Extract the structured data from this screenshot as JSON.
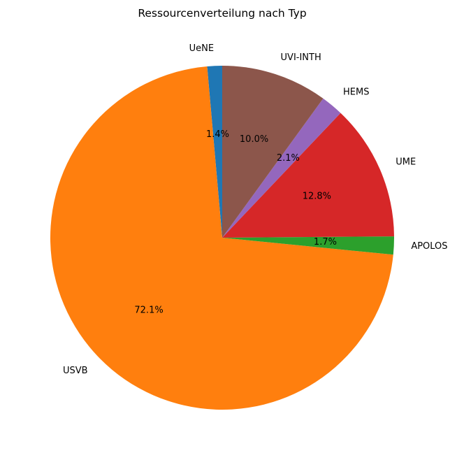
{
  "chart_data": {
    "type": "pie",
    "title": "Ressourcenverteilung nach Typ",
    "slices": [
      {
        "label": "UeNE",
        "value": 1.4,
        "pct_label": "1.4%",
        "color": "#1f77b4"
      },
      {
        "label": "USVB",
        "value": 72.1,
        "pct_label": "72.1%",
        "color": "#ff7f0e"
      },
      {
        "label": "APOLOS",
        "value": 1.7,
        "pct_label": "1.7%",
        "color": "#2ca02c"
      },
      {
        "label": "UME",
        "value": 12.8,
        "pct_label": "12.8%",
        "color": "#d62728"
      },
      {
        "label": "HEMS",
        "value": 2.1,
        "pct_label": "2.1%",
        "color": "#9467bd"
      },
      {
        "label": "UVI-INTH",
        "value": 10.0,
        "pct_label": "10.0%",
        "color": "#8c564b"
      }
    ],
    "start_angle": 90,
    "direction": "counterclockwise"
  }
}
